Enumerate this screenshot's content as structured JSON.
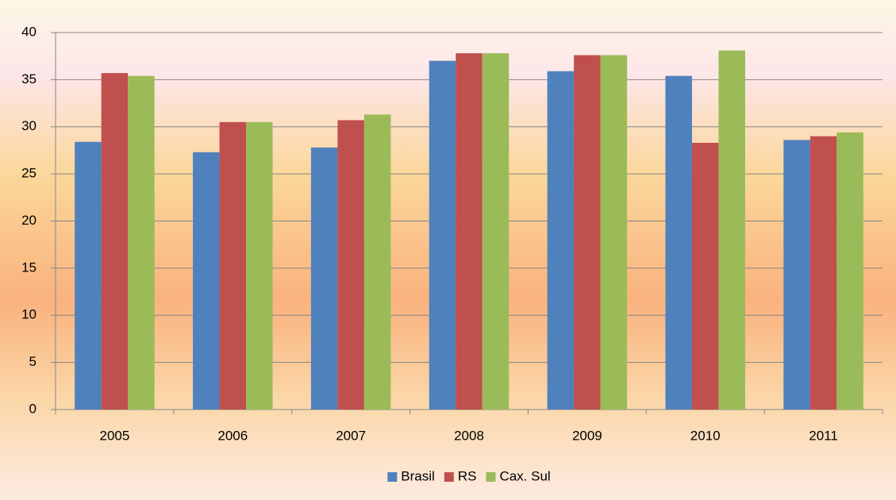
{
  "chart_data": {
    "type": "bar",
    "categories": [
      "2005",
      "2006",
      "2007",
      "2008",
      "2009",
      "2010",
      "2011"
    ],
    "series": [
      {
        "name": "Brasil",
        "color": "#4f81bd",
        "values": [
          28.4,
          27.3,
          27.8,
          37.0,
          35.9,
          35.4,
          28.6
        ]
      },
      {
        "name": "RS",
        "color": "#c0504d",
        "values": [
          35.7,
          30.5,
          30.7,
          37.8,
          37.6,
          28.3,
          29.0
        ]
      },
      {
        "name": "Cax. Sul",
        "color": "#9bbb59",
        "values": [
          35.4,
          30.5,
          31.3,
          37.8,
          37.6,
          38.1,
          29.4
        ]
      }
    ],
    "ylim": [
      0,
      40
    ],
    "yticks": [
      0,
      5,
      10,
      15,
      20,
      25,
      30,
      35,
      40
    ],
    "grid": true,
    "legend": "bottom"
  }
}
